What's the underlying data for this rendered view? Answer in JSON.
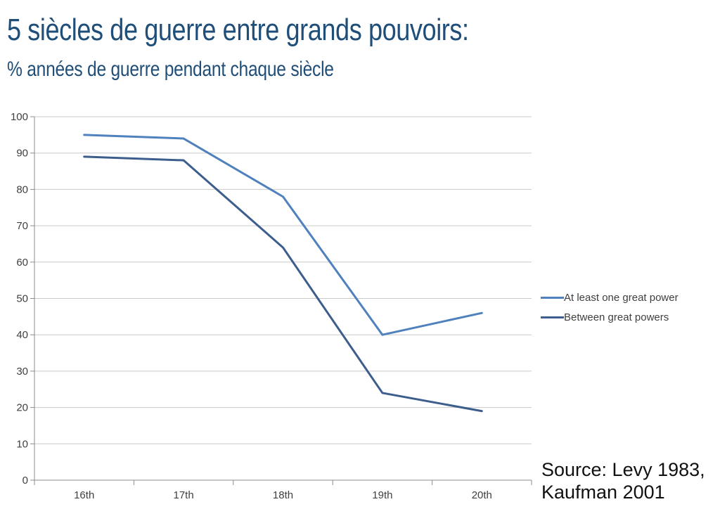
{
  "header": {
    "title": "5 siècles de guerre entre grands pouvoirs:",
    "subtitle": "% années de guerre pendant chaque siècle",
    "title_color": "#1F4E79"
  },
  "chart_data": {
    "type": "line",
    "title": "5 siècles de guerre entre grands pouvoirs: % années de guerre pendant chaque siècle",
    "categories": [
      "16th",
      "17th",
      "18th",
      "19th",
      "20th"
    ],
    "xlabel": "",
    "ylabel": "",
    "ylim": [
      0,
      100
    ],
    "ytick_step": 10,
    "yticks": [
      0,
      10,
      20,
      30,
      40,
      50,
      60,
      70,
      80,
      90,
      100
    ],
    "grid": "horizontal",
    "legend_position": "right",
    "series": [
      {
        "name": "At least one great power",
        "color": "#4F81BD",
        "values": [
          95,
          94,
          78,
          40,
          46
        ]
      },
      {
        "name": "Between great powers",
        "color": "#3D5E8C",
        "values": [
          89,
          88,
          64,
          24,
          19
        ]
      }
    ]
  },
  "source": {
    "line1": "Source: Levy 1983,",
    "line2": "Kaufman 2001"
  }
}
